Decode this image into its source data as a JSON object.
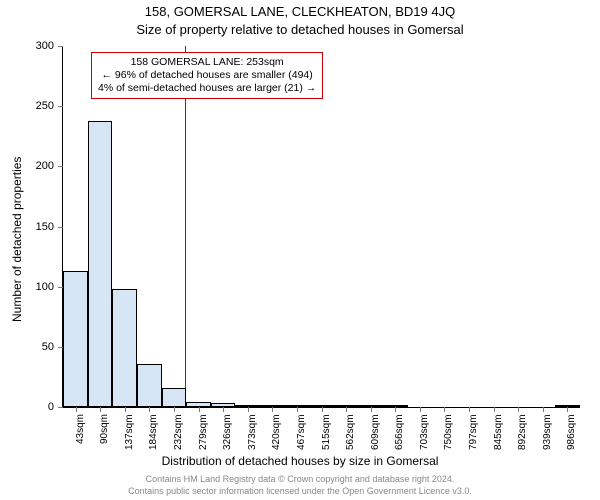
{
  "chart": {
    "type": "histogram",
    "title_line1": "158, GOMERSAL LANE, CLECKHEATON, BD19 4JQ",
    "title_line2": "Size of property relative to detached houses in Gomersal",
    "ylabel": "Number of detached properties",
    "xlabel": "Distribution of detached houses by size in Gomersal",
    "ylim": [
      0,
      300
    ],
    "ytick_step": 50,
    "yticks": [
      0,
      50,
      100,
      150,
      200,
      250,
      300
    ],
    "xticks": [
      "43sqm",
      "90sqm",
      "137sqm",
      "184sqm",
      "232sqm",
      "279sqm",
      "326sqm",
      "373sqm",
      "420sqm",
      "467sqm",
      "515sqm",
      "562sqm",
      "609sqm",
      "656sqm",
      "703sqm",
      "750sqm",
      "797sqm",
      "845sqm",
      "892sqm",
      "939sqm",
      "986sqm"
    ],
    "xtick_values": [
      43,
      90,
      137,
      184,
      232,
      279,
      326,
      373,
      420,
      467,
      515,
      562,
      609,
      656,
      703,
      750,
      797,
      845,
      892,
      939,
      986
    ],
    "x_range": [
      19,
      1010
    ],
    "bars": [
      {
        "x_start": 19.5,
        "x_end": 66.5,
        "value": 113
      },
      {
        "x_start": 66.5,
        "x_end": 113.5,
        "value": 238
      },
      {
        "x_start": 113.5,
        "x_end": 160.5,
        "value": 98
      },
      {
        "x_start": 160.5,
        "x_end": 208.0,
        "value": 36
      },
      {
        "x_start": 208.0,
        "x_end": 255.5,
        "value": 16
      },
      {
        "x_start": 255.5,
        "x_end": 302.5,
        "value": 4
      },
      {
        "x_start": 302.5,
        "x_end": 349.5,
        "value": 3
      },
      {
        "x_start": 349.5,
        "x_end": 396.5,
        "value": 2
      },
      {
        "x_start": 396.5,
        "x_end": 443.5,
        "value": 2
      },
      {
        "x_start": 443.5,
        "x_end": 491.0,
        "value": 2
      },
      {
        "x_start": 491.0,
        "x_end": 538.5,
        "value": 2
      },
      {
        "x_start": 538.5,
        "x_end": 585.5,
        "value": 2
      },
      {
        "x_start": 585.5,
        "x_end": 632.5,
        "value": 1
      },
      {
        "x_start": 632.5,
        "x_end": 679.5,
        "value": 1
      },
      {
        "x_start": 679.5,
        "x_end": 726.5,
        "value": 0
      },
      {
        "x_start": 726.5,
        "x_end": 774.0,
        "value": 0
      },
      {
        "x_start": 774.0,
        "x_end": 821.5,
        "value": 0
      },
      {
        "x_start": 821.5,
        "x_end": 868.5,
        "value": 0
      },
      {
        "x_start": 868.5,
        "x_end": 915.5,
        "value": 0
      },
      {
        "x_start": 915.5,
        "x_end": 962.5,
        "value": 0
      },
      {
        "x_start": 962.5,
        "x_end": 1009.5,
        "value": 1
      }
    ],
    "bar_fill": "#d6e6f5",
    "bar_stroke": "#000000",
    "marker": {
      "x_value": 253,
      "color": "#cc0000"
    },
    "info_box": {
      "line1": "158 GOMERSAL LANE: 253sqm",
      "line2": "← 96% of detached houses are smaller (494)",
      "line3": "4% of semi-detached houses are larger (21) →",
      "border_color": "#cc0000",
      "bg_color": "#ffffff",
      "fontsize": 10.5
    },
    "title_fontsize": 13,
    "label_fontsize": 12,
    "tick_fontsize": 11,
    "xtick_fontsize": 10,
    "background_color": "#ffffff",
    "axis_color": "#000000"
  },
  "footer": {
    "line1": "Contains HM Land Registry data © Crown copyright and database right 2024.",
    "line2": "Contains public sector information licensed under the Open Government Licence v3.0.",
    "color": "#888888",
    "fontsize": 9
  }
}
